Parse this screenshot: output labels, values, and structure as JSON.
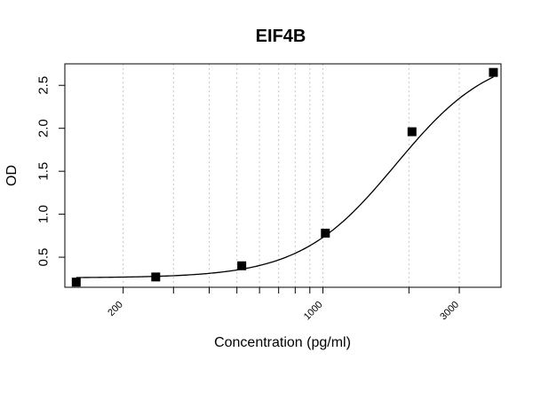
{
  "chart_data": {
    "type": "scatter",
    "title": "EIF4B",
    "xlabel": "Concentration (pg/ml)",
    "ylabel": "OD",
    "x_scale": "log",
    "xlim": [
      125,
      4200
    ],
    "ylim": [
      0.15,
      2.75
    ],
    "x_tick_labels": [
      "200",
      "1000",
      "3000"
    ],
    "x_ticks": [
      200,
      1000,
      3000
    ],
    "y_tick_labels": [
      "0.5",
      "1.0",
      "1.5",
      "2.0",
      "2.5"
    ],
    "y_ticks": [
      0.5,
      1.0,
      1.5,
      2.0,
      2.5
    ],
    "x_grid": [
      200,
      300,
      400,
      500,
      600,
      700,
      800,
      900,
      1000,
      2000,
      3000
    ],
    "grid": "vertical-dotted",
    "series": [
      {
        "marker": "square",
        "points": [
          {
            "x": 137,
            "y": 0.21
          },
          {
            "x": 260,
            "y": 0.27
          },
          {
            "x": 520,
            "y": 0.4
          },
          {
            "x": 1020,
            "y": 0.78
          },
          {
            "x": 2050,
            "y": 1.96
          },
          {
            "x": 3950,
            "y": 2.65
          }
        ]
      }
    ],
    "fit_curve": {
      "type": "4PL",
      "bottom": 0.26,
      "top": 2.9,
      "ec50": 1800,
      "hill": 2.6
    },
    "colors": {
      "points": "#000000",
      "curve": "#000000",
      "grid": "#c8c8c8",
      "axes": "#000000"
    }
  }
}
